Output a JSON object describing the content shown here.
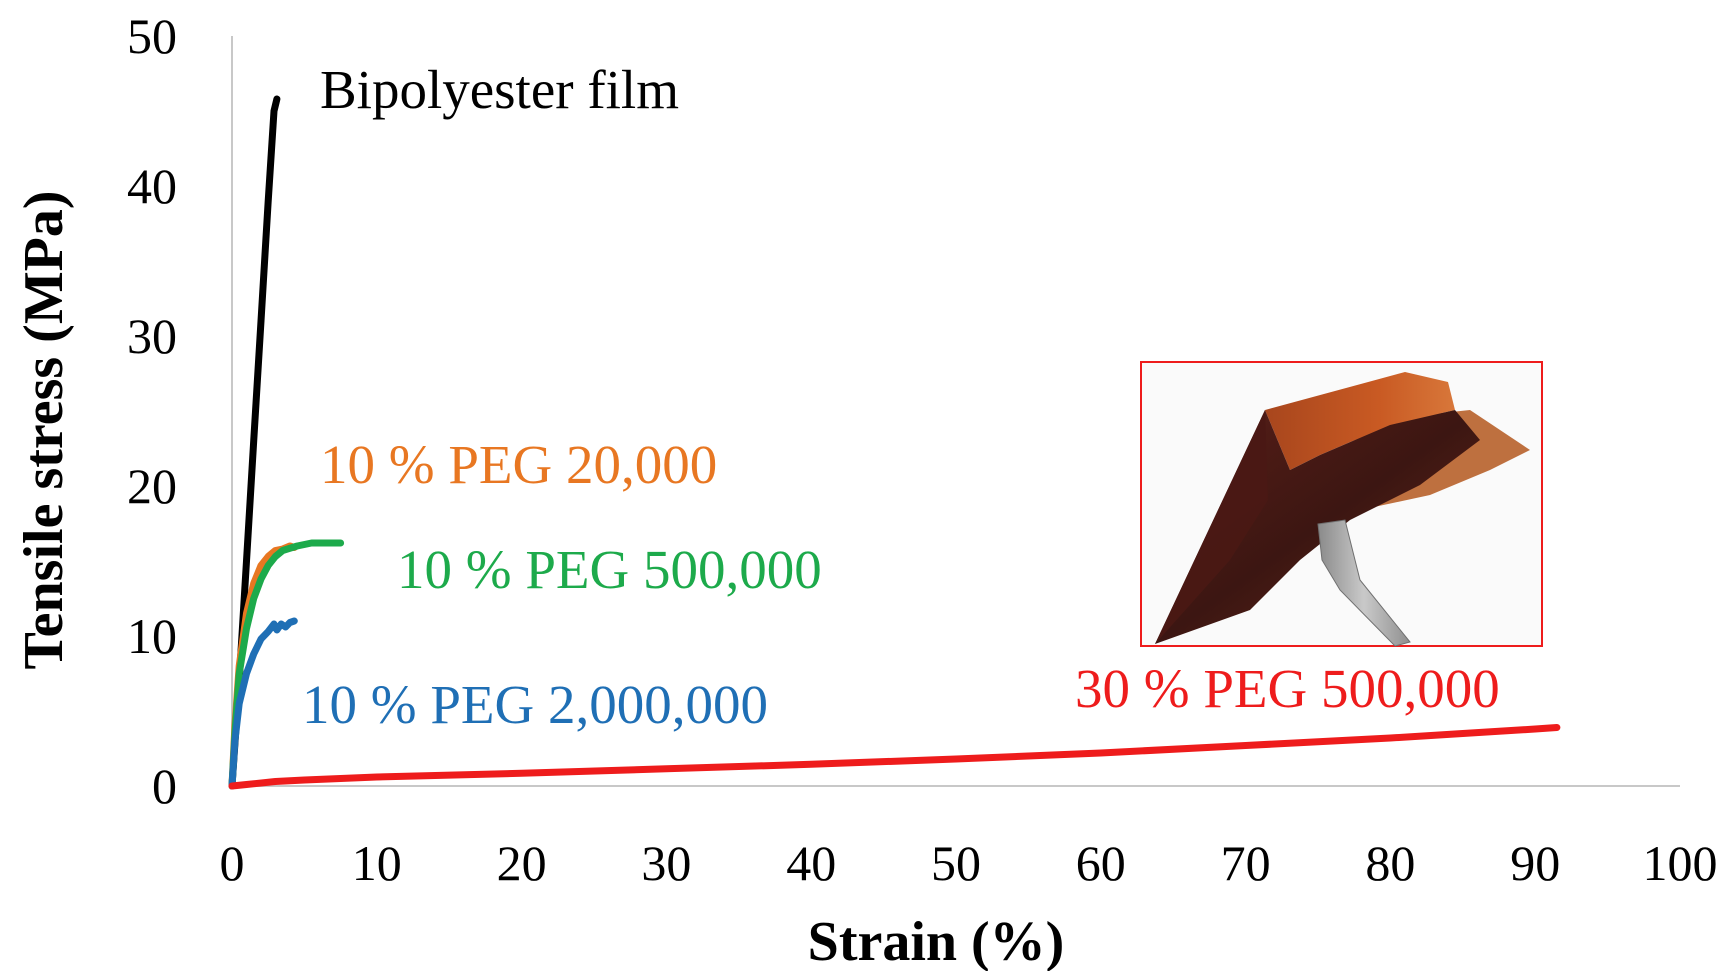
{
  "chart_data": {
    "type": "line",
    "xlabel": "Strain (%)",
    "ylabel": "Tensile stress (MPa)",
    "xlim": [
      0,
      100
    ],
    "ylim": [
      0,
      50
    ],
    "xticks": [
      "0",
      "10",
      "20",
      "30",
      "40",
      "50",
      "60",
      "70",
      "80",
      "90",
      "100"
    ],
    "yticks": [
      "0",
      "10",
      "20",
      "30",
      "40",
      "50"
    ],
    "grid": false,
    "legend": "none",
    "series": [
      {
        "name": "Bipolyester film",
        "color": "#000000",
        "points": [
          [
            0,
            0
          ],
          [
            0.5,
            7
          ],
          [
            1.0,
            15
          ],
          [
            1.5,
            23
          ],
          [
            2.0,
            31
          ],
          [
            2.5,
            39
          ],
          [
            2.9,
            45
          ],
          [
            3.1,
            45.8
          ]
        ]
      },
      {
        "name": "10 % PEG 20,000",
        "color": "#E87722",
        "points": [
          [
            0,
            0
          ],
          [
            0.2,
            4
          ],
          [
            0.5,
            8
          ],
          [
            1.0,
            11.5
          ],
          [
            1.5,
            13.5
          ],
          [
            2.0,
            14.7
          ],
          [
            2.5,
            15.3
          ],
          [
            3.0,
            15.7
          ],
          [
            3.5,
            15.8
          ],
          [
            4.0,
            16.0
          ],
          [
            4.3,
            15.9
          ]
        ]
      },
      {
        "name": "10 % PEG 500,000",
        "color": "#1DAA4B",
        "points": [
          [
            0,
            0
          ],
          [
            0.2,
            3.5
          ],
          [
            0.5,
            7.5
          ],
          [
            1.0,
            10.5
          ],
          [
            1.5,
            12.5
          ],
          [
            2.0,
            13.8
          ],
          [
            2.5,
            14.7
          ],
          [
            3.0,
            15.3
          ],
          [
            3.5,
            15.7
          ],
          [
            4.5,
            16.0
          ],
          [
            5.5,
            16.2
          ],
          [
            6.5,
            16.2
          ],
          [
            7.5,
            16.2
          ]
        ]
      },
      {
        "name": "10 % PEG 2,000,000",
        "color": "#1F6FB5",
        "points": [
          [
            0,
            0
          ],
          [
            0.2,
            3
          ],
          [
            0.5,
            5.5
          ],
          [
            1.0,
            7.5
          ],
          [
            1.5,
            8.8
          ],
          [
            2.0,
            9.8
          ],
          [
            2.5,
            10.3
          ],
          [
            2.9,
            10.8
          ],
          [
            3.1,
            10.4
          ],
          [
            3.4,
            10.8
          ],
          [
            3.7,
            10.6
          ],
          [
            4.0,
            10.9
          ],
          [
            4.3,
            11.0
          ]
        ]
      },
      {
        "name": "30 % PEG 500,000",
        "color": "#EE1C1C",
        "points": [
          [
            0,
            0
          ],
          [
            1,
            0.1
          ],
          [
            3,
            0.3
          ],
          [
            5,
            0.4
          ],
          [
            10,
            0.6
          ],
          [
            20,
            0.85
          ],
          [
            30,
            1.15
          ],
          [
            40,
            1.45
          ],
          [
            50,
            1.8
          ],
          [
            60,
            2.2
          ],
          [
            70,
            2.7
          ],
          [
            80,
            3.2
          ],
          [
            85,
            3.5
          ],
          [
            90,
            3.8
          ],
          [
            91.5,
            3.9
          ]
        ]
      }
    ],
    "annotations": [
      "Bipolyester film",
      "10 % PEG 20,000",
      "10 % PEG 500,000",
      "10 % PEG 2,000,000",
      "30 % PEG 500,000"
    ],
    "inset": {
      "frame_color": "#EE1C1C"
    }
  }
}
